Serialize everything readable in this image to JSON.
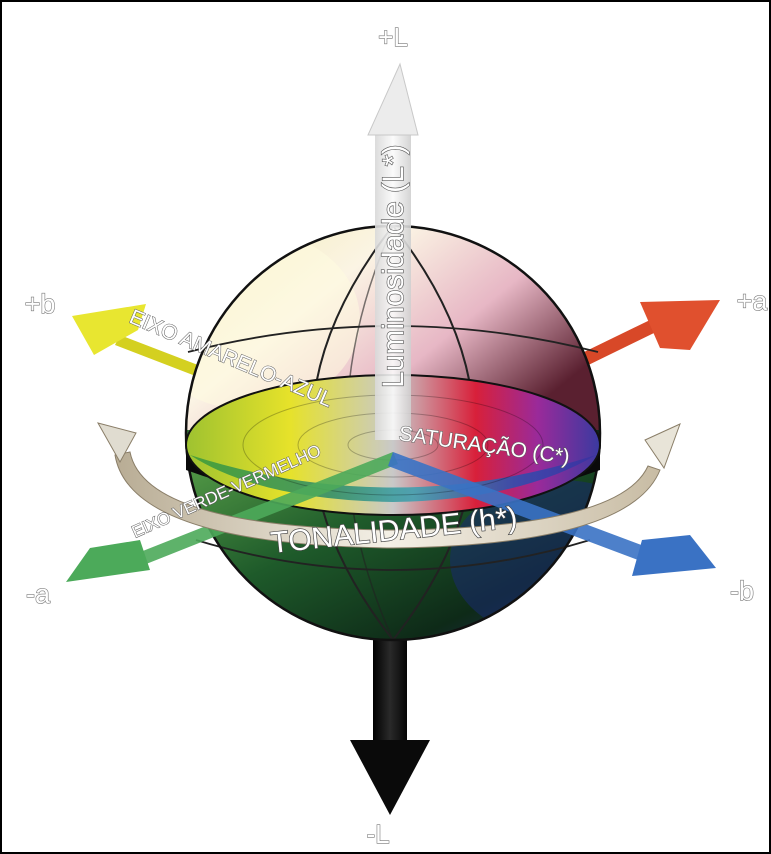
{
  "axes": {
    "plus_l": "+L",
    "minus_l": "-L",
    "plus_a": "+a",
    "minus_a": "-a",
    "plus_b": "+b",
    "minus_b": "-b"
  },
  "labels": {
    "lightness_axis": "Luminosidade (L*)",
    "yellow_blue_axis": "EIXO AMARELO-AZUL",
    "green_red_axis": "EIXO VERDE-VERMELHO",
    "saturation": "SATURAÇÃO (C*)",
    "hue": "TONALIDADE (h*)"
  },
  "colors": {
    "plus_a_arrow": "#e0502e",
    "minus_a_arrow": "#4caa5a",
    "plus_b_arrow": "#e8e630",
    "minus_b_arrow": "#3a72c4",
    "plus_l_arrow": "#f0f0f0",
    "minus_l_arrow": "#111111",
    "hue_ring": "#d8d2c4"
  }
}
